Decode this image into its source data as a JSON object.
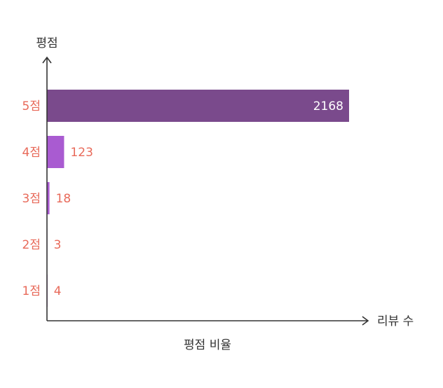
{
  "chart_data": {
    "type": "bar",
    "orientation": "horizontal",
    "title": "평점 비율",
    "ylabel": "평점",
    "xlabel": "리뷰 수",
    "categories": [
      "5점",
      "4점",
      "3점",
      "2점",
      "1점"
    ],
    "values": [
      2168,
      123,
      18,
      3,
      4
    ],
    "xlim": [
      0,
      2168
    ],
    "grid": false,
    "colors": {
      "5점": "#7a4a8c",
      "4점": "#a95bd1",
      "3점": "#a95bd1",
      "2점": "#a95bd1",
      "1점": "#a95bd1",
      "tick_label": "#e86a5a",
      "value_label_inside": "#ffffff",
      "value_label_outside": "#e86a5a"
    }
  }
}
